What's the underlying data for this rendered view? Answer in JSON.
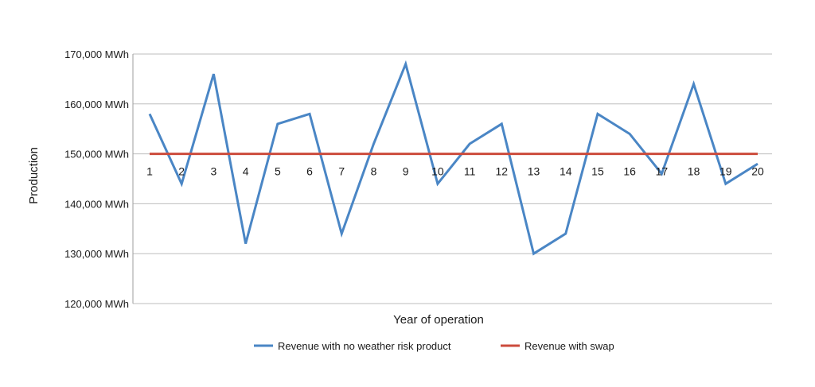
{
  "chart_data": {
    "type": "line",
    "title": "",
    "xlabel": "Year of operation",
    "ylabel": "Production",
    "categories": [
      "1",
      "2",
      "3",
      "4",
      "5",
      "6",
      "7",
      "8",
      "9",
      "10",
      "11",
      "12",
      "13",
      "14",
      "15",
      "16",
      "17",
      "18",
      "19",
      "20"
    ],
    "yticks": [
      "120,000 MWh",
      "130,000 MWh",
      "140,000 MWh",
      "150,000 MWh",
      "160,000 MWh",
      "170,000 MWh"
    ],
    "ylim": [
      120000,
      170000
    ],
    "grid": true,
    "legend_position": "bottom",
    "series": [
      {
        "name": "Revenue with no weather risk product",
        "color": "#4a86c5",
        "values": [
          158000,
          144000,
          166000,
          132000,
          156000,
          158000,
          134000,
          152000,
          168000,
          144000,
          152000,
          156000,
          130000,
          134000,
          158000,
          154000,
          146000,
          164000,
          144000,
          148000
        ]
      },
      {
        "name": "Revenue with swap",
        "color": "#cc4b3c",
        "values": [
          150000,
          150000,
          150000,
          150000,
          150000,
          150000,
          150000,
          150000,
          150000,
          150000,
          150000,
          150000,
          150000,
          150000,
          150000,
          150000,
          150000,
          150000,
          150000,
          150000
        ]
      }
    ]
  }
}
